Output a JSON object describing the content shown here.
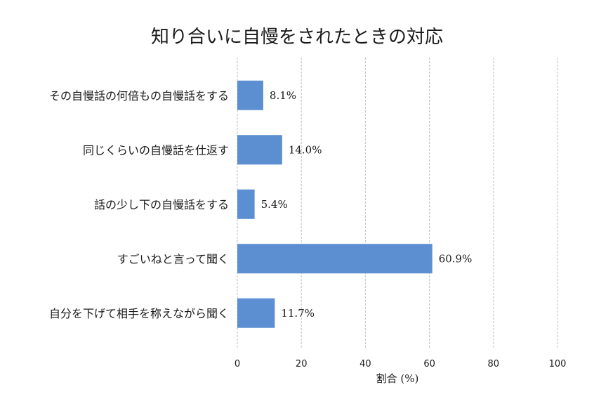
{
  "chart_data": {
    "type": "bar",
    "orientation": "horizontal",
    "title": "知り合いに自慢をされたときの対応",
    "xlabel": "割合 (%)",
    "ylabel": "",
    "categories": [
      "その自慢話の何倍もの自慢話をする",
      "同じくらいの自慢話を仕返す",
      "話の少し下の自慢話をする",
      "すごいねと言って聞く",
      "自分を下げて相手を称えながら聞く"
    ],
    "values": [
      8.1,
      14.0,
      5.4,
      60.9,
      11.7
    ],
    "value_labels": [
      "8.1%",
      "14.0%",
      "5.4%",
      "60.9%",
      "11.7%"
    ],
    "xlim": [
      0,
      100
    ],
    "xticks": [
      0,
      20,
      40,
      60,
      80,
      100
    ],
    "xtick_labels": [
      "0",
      "20",
      "40",
      "60",
      "80",
      "100"
    ],
    "grid": "x-dashed",
    "bar_color": "#5b8fd1"
  }
}
